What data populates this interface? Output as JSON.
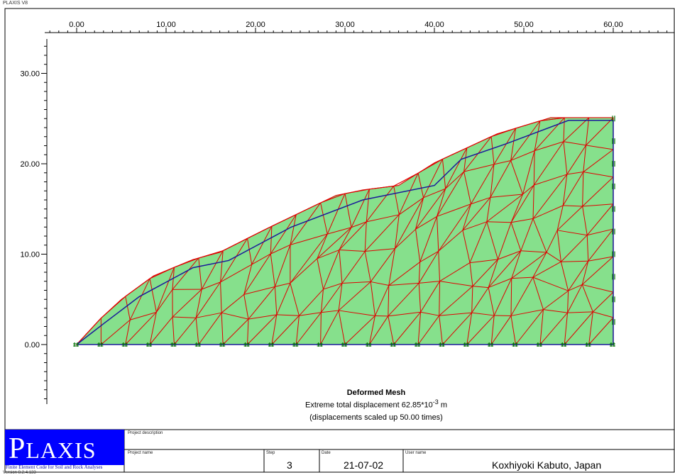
{
  "app": {
    "title": "PLAXIS V8"
  },
  "axes": {
    "x_ticks": [
      "0.00",
      "10.00",
      "20.00",
      "30.00",
      "40.00",
      "50.00",
      "60.00"
    ],
    "y_ticks": [
      "0.00",
      "10.00",
      "20.00",
      "30.00"
    ]
  },
  "plot": {
    "title": "Deformed Mesh",
    "extreme_prefix": "Extreme total displacement 62.85*10",
    "extreme_exp": "-3",
    "extreme_unit": " m",
    "scale_note": "(displacements scaled up 50.00 times)",
    "colors": {
      "mesh_fill": "#86e08c",
      "mesh_lines": "#e00000",
      "deformed_outline": "#1a1a9a",
      "fixity": "#007000"
    }
  },
  "logo": {
    "text_first": "P",
    "text_rest": "LAXIS",
    "subtitle": "Finite Element Code for Soil and Rock Analyses",
    "version": "Version 8.2.4.133"
  },
  "info": {
    "project_description_label": "Project description",
    "project_name_label": "Project name",
    "step_label": "Step",
    "step_value": "3",
    "date_label": "Date",
    "date_value": "21-07-02",
    "user_label": "User name",
    "user_value": "Koxhiyoki Kabuto, Japan"
  }
}
